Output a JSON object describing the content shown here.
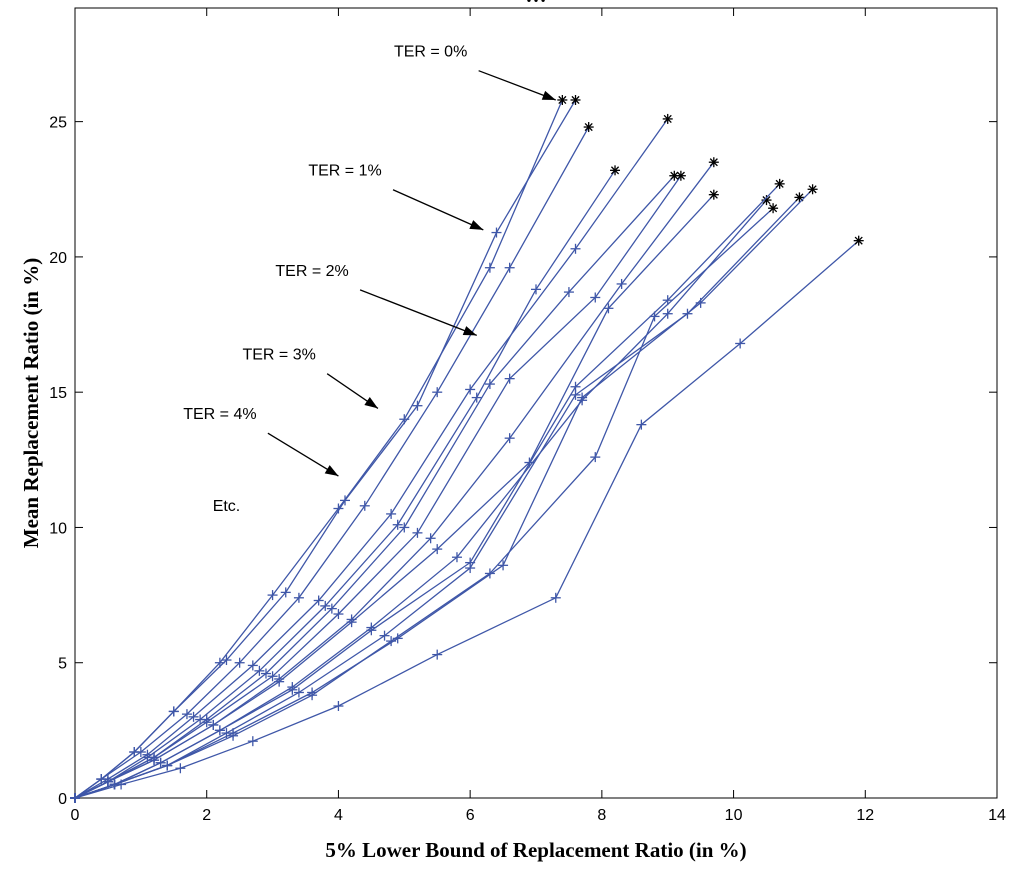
{
  "chart_data": {
    "type": "line",
    "title": "…",
    "xlabel": "5% Lower Bound of Replacement Ratio (in %)",
    "ylabel": "Mean Replacement Ratio (in %)",
    "xlim": [
      0,
      14
    ],
    "ylim": [
      0,
      29.2
    ],
    "xticks": [
      0,
      2,
      4,
      6,
      8,
      10,
      12,
      14
    ],
    "yticks": [
      0,
      5,
      10,
      15,
      20,
      25
    ],
    "grid": false,
    "legend": "none",
    "line_color": "#3f57a8",
    "endpoint_color": "#000000",
    "point_marker": "plus",
    "endpoint_marker": "asterisk",
    "series": [
      {
        "x": [
          0,
          0.4,
          0.9,
          1.5,
          2.2,
          3.0,
          4.0,
          5.0,
          6.3,
          7.4
        ],
        "y": [
          0,
          0.7,
          1.7,
          3.2,
          5.0,
          7.5,
          10.7,
          14.0,
          19.6,
          25.8
        ]
      },
      {
        "x": [
          0,
          0.4,
          0.9,
          1.5,
          2.3,
          3.2,
          4.1,
          5.2,
          6.4,
          7.6
        ],
        "y": [
          0,
          0.7,
          1.7,
          3.2,
          5.1,
          7.6,
          11.0,
          14.5,
          20.9,
          25.8
        ]
      },
      {
        "x": [
          0,
          0.4,
          1.0,
          1.7,
          2.5,
          3.4,
          4.4,
          5.5,
          6.6,
          7.8
        ],
        "y": [
          0,
          0.7,
          1.7,
          3.1,
          5.0,
          7.4,
          10.8,
          15.0,
          19.6,
          24.8
        ]
      },
      {
        "x": [
          0,
          0.5,
          1.1,
          1.8,
          2.7,
          3.7,
          4.8,
          6.0,
          7.6,
          9.0
        ],
        "y": [
          0,
          0.7,
          1.6,
          3.0,
          4.9,
          7.3,
          10.5,
          15.1,
          20.3,
          25.1
        ]
      },
      {
        "x": [
          0,
          0.5,
          1.1,
          1.9,
          2.8,
          3.8,
          4.9,
          6.1,
          7.0,
          8.2
        ],
        "y": [
          0,
          0.6,
          1.5,
          2.9,
          4.7,
          7.1,
          10.1,
          14.8,
          18.8,
          23.2
        ]
      },
      {
        "x": [
          0,
          0.5,
          1.2,
          2.0,
          2.9,
          3.9,
          5.0,
          6.3,
          7.5,
          9.1
        ],
        "y": [
          0,
          0.6,
          1.5,
          2.9,
          4.6,
          7.0,
          10.0,
          15.3,
          18.7,
          23.0
        ]
      },
      {
        "x": [
          0,
          0.5,
          1.2,
          2.0,
          3.0,
          4.0,
          5.2,
          6.6,
          7.9,
          9.2
        ],
        "y": [
          0,
          0.6,
          1.5,
          2.8,
          4.5,
          6.8,
          9.8,
          15.5,
          18.5,
          23.0
        ]
      },
      {
        "x": [
          0,
          0.5,
          1.2,
          2.1,
          3.1,
          4.2,
          5.4,
          6.6,
          8.3,
          9.7
        ],
        "y": [
          0,
          0.6,
          1.4,
          2.7,
          4.4,
          6.6,
          9.6,
          13.3,
          19.0,
          23.5
        ]
      },
      {
        "x": [
          0,
          0.5,
          1.2,
          2.1,
          3.1,
          4.2,
          5.5,
          6.9,
          8.1,
          9.7
        ],
        "y": [
          0,
          0.6,
          1.4,
          2.7,
          4.3,
          6.5,
          9.2,
          12.4,
          18.1,
          22.3
        ]
      },
      {
        "x": [
          0,
          0.6,
          1.3,
          2.2,
          3.3,
          4.5,
          5.8,
          7.7,
          9.0,
          10.5
        ],
        "y": [
          0,
          0.5,
          1.3,
          2.5,
          4.1,
          6.3,
          8.9,
          14.7,
          17.9,
          22.1
        ]
      },
      {
        "x": [
          0,
          0.6,
          1.3,
          2.2,
          3.3,
          4.5,
          6.0,
          7.6,
          9.0,
          10.7
        ],
        "y": [
          0,
          0.5,
          1.3,
          2.5,
          4.0,
          6.2,
          8.7,
          15.2,
          18.4,
          22.7
        ]
      },
      {
        "x": [
          0,
          0.6,
          1.4,
          2.3,
          3.4,
          4.7,
          6.0,
          7.6,
          9.3,
          11.0
        ],
        "y": [
          0,
          0.5,
          1.2,
          2.4,
          3.9,
          6.0,
          8.5,
          14.9,
          17.9,
          22.2
        ]
      },
      {
        "x": [
          0,
          0.6,
          1.4,
          2.4,
          3.6,
          4.9,
          6.5,
          7.7,
          9.5,
          11.2
        ],
        "y": [
          0,
          0.5,
          1.2,
          2.4,
          3.9,
          5.9,
          8.6,
          14.8,
          18.3,
          22.5
        ]
      },
      {
        "x": [
          0,
          0.6,
          1.4,
          2.4,
          3.6,
          4.8,
          6.3,
          7.9,
          8.8,
          10.6
        ],
        "y": [
          0,
          0.5,
          1.2,
          2.3,
          3.8,
          5.8,
          8.3,
          12.6,
          17.8,
          21.8
        ]
      },
      {
        "x": [
          0,
          0.7,
          1.6,
          2.7,
          4.0,
          5.5,
          7.3,
          8.6,
          10.1,
          11.9
        ],
        "y": [
          0,
          0.5,
          1.1,
          2.1,
          3.4,
          5.3,
          7.4,
          13.8,
          16.8,
          20.6
        ]
      }
    ],
    "annotations": [
      {
        "text": "TER = 0%",
        "x": 5.4,
        "y": 27.4,
        "arrow_to": [
          7.3,
          25.8
        ]
      },
      {
        "text": "TER = 1%",
        "x": 4.1,
        "y": 23.0,
        "arrow_to": [
          6.2,
          21.0
        ]
      },
      {
        "text": "TER = 2%",
        "x": 3.6,
        "y": 19.3,
        "arrow_to": [
          6.1,
          17.1
        ]
      },
      {
        "text": "TER = 3%",
        "x": 3.1,
        "y": 16.2,
        "arrow_to": [
          4.6,
          14.4
        ]
      },
      {
        "text": "TER = 4%",
        "x": 2.2,
        "y": 14.0,
        "arrow_to": [
          4.0,
          11.9
        ]
      },
      {
        "text": "Etc.",
        "x": 2.3,
        "y": 10.6
      }
    ]
  }
}
